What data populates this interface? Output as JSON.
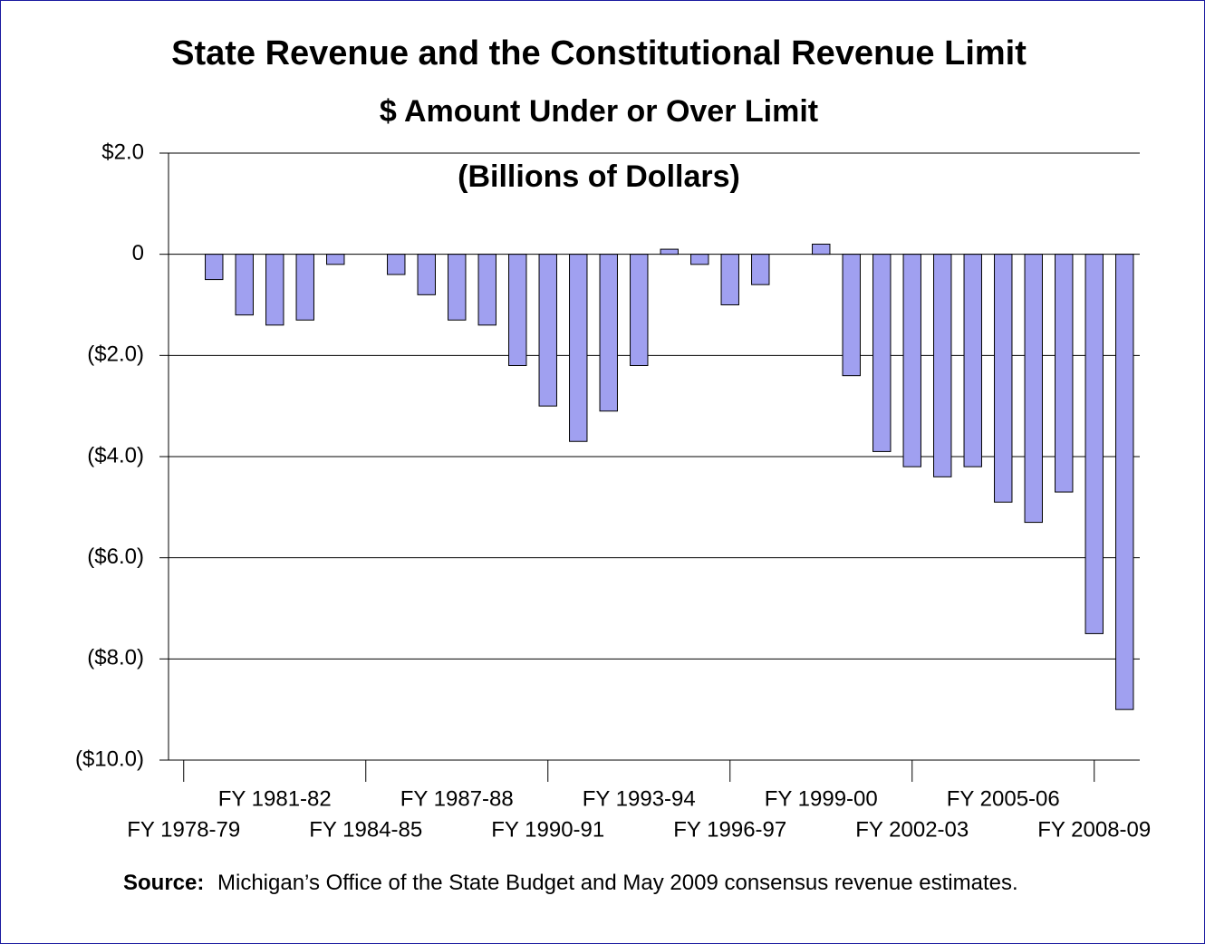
{
  "chart_data": {
    "type": "bar",
    "title": "State Revenue and the Constitutional Revenue Limit",
    "subtitle": "$ Amount Under or Over Limit",
    "units": "(Billions of Dollars)",
    "categories": [
      "FY 1978-79",
      null,
      null,
      "FY 1981-82",
      null,
      null,
      "FY 1984-85",
      null,
      null,
      "FY 1987-88",
      null,
      null,
      "FY 1990-91",
      null,
      null,
      "FY 1993-94",
      null,
      null,
      "FY 1996-97",
      null,
      null,
      "FY 1999-00",
      null,
      null,
      "FY 2002-03",
      null,
      null,
      "FY 2005-06",
      null,
      null,
      "FY 2008-09",
      null
    ],
    "values": [
      0,
      -0.5,
      -1.2,
      -1.4,
      -1.3,
      -0.2,
      0,
      -0.4,
      -0.8,
      -1.3,
      -1.4,
      -2.2,
      -3.0,
      -3.7,
      -3.1,
      -2.2,
      0.1,
      -0.2,
      -1.0,
      -0.6,
      0,
      0.2,
      -2.4,
      -3.9,
      -4.2,
      -4.4,
      -4.2,
      -4.9,
      -5.3,
      -4.7,
      -7.5,
      -9.0
    ],
    "color": "#a0a0f0",
    "ylim": [
      -10,
      2
    ],
    "yticks": [
      {
        "value": -10,
        "label": "($10.0)"
      },
      {
        "value": -8,
        "label": "($8.0)"
      },
      {
        "value": -6,
        "label": "($6.0)"
      },
      {
        "value": -4,
        "label": "($4.0)"
      },
      {
        "value": -2,
        "label": "($2.0)"
      },
      0,
      {
        "value": 2,
        "label": "$2.0"
      }
    ],
    "grid": true,
    "source_label": "Source:",
    "source_text": "Michigan’s Office of the State Budget and May 2009 consensus revenue estimates."
  }
}
